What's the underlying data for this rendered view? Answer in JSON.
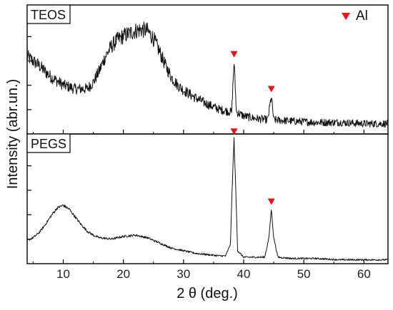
{
  "chart_data": {
    "type": "line",
    "xlabel": "2 θ (deg.)",
    "ylabel": "Intensity (abr.un.)",
    "xlim": [
      4,
      64
    ],
    "xticks": [
      10,
      20,
      30,
      40,
      50,
      60
    ],
    "legend": {
      "label": "Al",
      "placement": "top-right",
      "marker": "down-triangle",
      "color": "#e8141c"
    },
    "line_color": "#111111",
    "panels": [
      {
        "label": "TEOS",
        "ylim": [
          0,
          1
        ],
        "series": [
          {
            "x": [
              4,
              6,
              8,
              10,
              12,
              14,
              15,
              16,
              17,
              18,
              19,
              20,
              21,
              22,
              23,
              24,
              25,
              26,
              27,
              28,
              29,
              30,
              32,
              34,
              36,
              38,
              38.4,
              38.8,
              40,
              42,
              44,
              44.6,
              45,
              48,
              52,
              56,
              60,
              64
            ],
            "y": [
              0.6,
              0.53,
              0.44,
              0.38,
              0.35,
              0.35,
              0.4,
              0.49,
              0.6,
              0.68,
              0.73,
              0.76,
              0.78,
              0.8,
              0.81,
              0.8,
              0.74,
              0.64,
              0.53,
              0.44,
              0.38,
              0.34,
              0.28,
              0.23,
              0.19,
              0.17,
              0.56,
              0.17,
              0.14,
              0.12,
              0.11,
              0.29,
              0.11,
              0.1,
              0.09,
              0.09,
              0.08,
              0.08
            ]
          }
        ],
        "markers_x": [
          38.4,
          44.6
        ]
      },
      {
        "label": "PEGS",
        "ylim": [
          0,
          1
        ],
        "series": [
          {
            "x": [
              4,
              5,
              6,
              7,
              8,
              9,
              10,
              11,
              12,
              13,
              14,
              15,
              16,
              18,
              20,
              22,
              24,
              26,
              28,
              30,
              32,
              34,
              36,
              37,
              37.8,
              38.1,
              38.4,
              38.7,
              39,
              40,
              42,
              43.5,
              44.2,
              44.6,
              45,
              45.7,
              48,
              52,
              56,
              60,
              64
            ],
            "y": [
              0.18,
              0.2,
              0.24,
              0.3,
              0.37,
              0.43,
              0.45,
              0.42,
              0.36,
              0.3,
              0.25,
              0.22,
              0.2,
              0.19,
              0.21,
              0.22,
              0.2,
              0.16,
              0.12,
              0.1,
              0.08,
              0.07,
              0.06,
              0.06,
              0.15,
              0.6,
              0.96,
              0.55,
              0.1,
              0.05,
              0.05,
              0.05,
              0.2,
              0.42,
              0.2,
              0.05,
              0.04,
              0.04,
              0.03,
              0.03,
              0.03
            ]
          }
        ],
        "markers_x": [
          38.4,
          44.6
        ]
      }
    ]
  }
}
